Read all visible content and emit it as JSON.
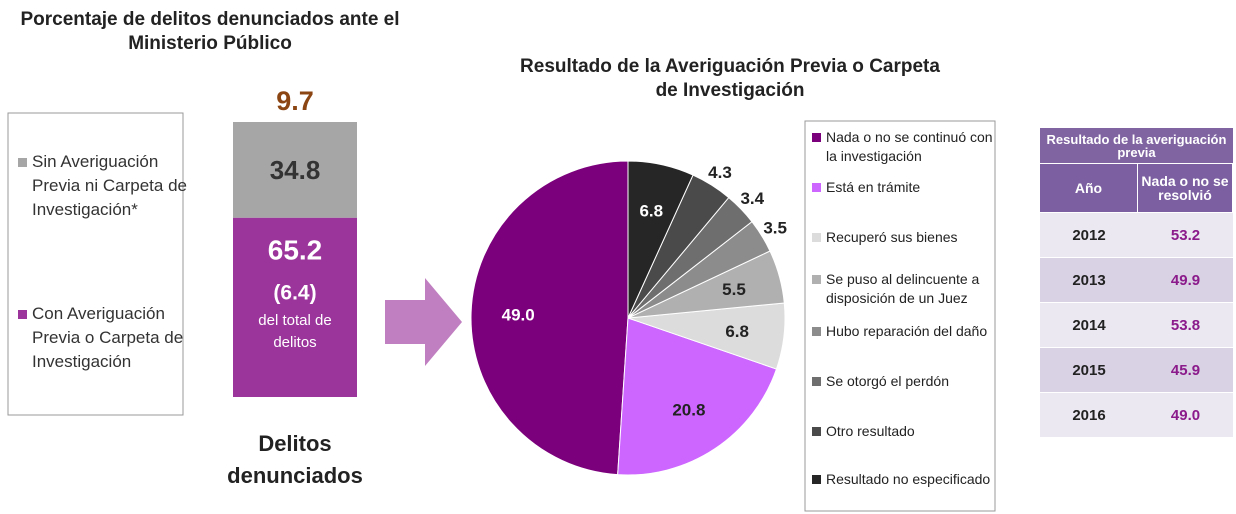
{
  "chart_data": [
    {
      "type": "stacked-bar",
      "title": "Porcentaje de delitos denunciados ante el Ministerio Público",
      "annotation": "9.7",
      "categories": [
        "Delitos denunciados"
      ],
      "series": [
        {
          "name": "Con Averiguación Previa o Carpeta de Investigación",
          "color": "#9b359b",
          "values": [
            65.2
          ],
          "inner_value": {
            "value": 6.4,
            "label": "(6.4)"
          },
          "inner_note": "del total de delitos"
        },
        {
          "name": "Sin Averiguación Previa ni Carpeta de Investigación*",
          "color": "#a6a6a6",
          "values": [
            34.8
          ]
        }
      ],
      "ylim": [
        0,
        100
      ]
    },
    {
      "type": "pie",
      "title": "Resultado de la Averiguación Previa o Carpeta de Investigación",
      "categories": [
        "Nada o no se continuó con la investigación",
        "Está en trámite",
        "Recuperó sus bienes",
        "Se puso al delincuente a disposición de un Juez",
        "Hubo reparación del daño",
        "Se otorgó el perdón",
        "Otro resultado",
        "Resultado no especificado"
      ],
      "values": [
        49.0,
        20.8,
        6.8,
        5.5,
        3.5,
        3.4,
        4.3,
        6.8
      ],
      "value_labels": [
        "49.0",
        "20.8",
        "6.8",
        "5.5",
        "3.5",
        "3.4",
        "4.3",
        "6.8"
      ],
      "colors": [
        "#7b007b",
        "#cc66ff",
        "#dcdcdc",
        "#b0b0b0",
        "#8c8c8c",
        "#6e6e6e",
        "#4a4a4a",
        "#262626"
      ]
    }
  ],
  "table": {
    "title": "Resultado de la averiguación previa",
    "columns": [
      "Año",
      "Nada o no se resolvió"
    ],
    "rows": [
      [
        "2012",
        "53.2"
      ],
      [
        "2013",
        "49.9"
      ],
      [
        "2014",
        "53.8"
      ],
      [
        "2015",
        "45.9"
      ],
      [
        "2016",
        "49.0"
      ]
    ]
  }
}
